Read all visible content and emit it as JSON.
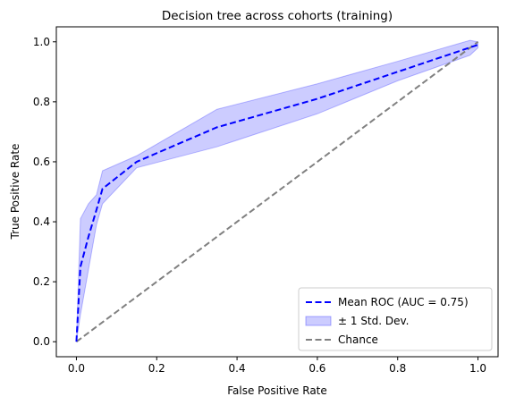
{
  "chart_data": {
    "type": "line",
    "title": "Decision tree across cohorts (training)",
    "xlabel": "False Positive Rate",
    "ylabel": "True Positive Rate",
    "xlim": [
      -0.05,
      1.05
    ],
    "ylim": [
      -0.05,
      1.05
    ],
    "xticks": [
      "0.0",
      "0.2",
      "0.4",
      "0.6",
      "0.8",
      "1.0"
    ],
    "yticks": [
      "0.0",
      "0.2",
      "0.4",
      "0.6",
      "0.8",
      "1.0"
    ],
    "grid": false,
    "legend_position": "lower-right",
    "series": [
      {
        "name": "Mean ROC (AUC = 0.75)",
        "style": "dashed",
        "color": "#0000ff",
        "x": [
          0.0,
          0.01,
          0.03,
          0.05,
          0.065,
          0.15,
          0.35,
          0.6,
          0.8,
          1.0
        ],
        "y": [
          0.0,
          0.25,
          0.35,
          0.44,
          0.51,
          0.6,
          0.715,
          0.81,
          0.9,
          0.99
        ]
      },
      {
        "name": "± 1 Std. Dev.",
        "style": "band",
        "color": "#0000ff",
        "x": [
          0.0,
          0.01,
          0.03,
          0.05,
          0.065,
          0.15,
          0.35,
          0.6,
          0.8,
          0.98,
          1.0
        ],
        "upper": [
          0.0,
          0.41,
          0.46,
          0.49,
          0.57,
          0.62,
          0.775,
          0.86,
          0.935,
          1.005,
          1.0
        ],
        "lower": [
          0.0,
          0.09,
          0.24,
          0.39,
          0.46,
          0.58,
          0.65,
          0.76,
          0.87,
          0.955,
          0.98
        ]
      },
      {
        "name": "Chance",
        "style": "dashed",
        "color": "#808080",
        "x": [
          0.0,
          1.0
        ],
        "y": [
          0.0,
          1.0
        ]
      }
    ]
  }
}
